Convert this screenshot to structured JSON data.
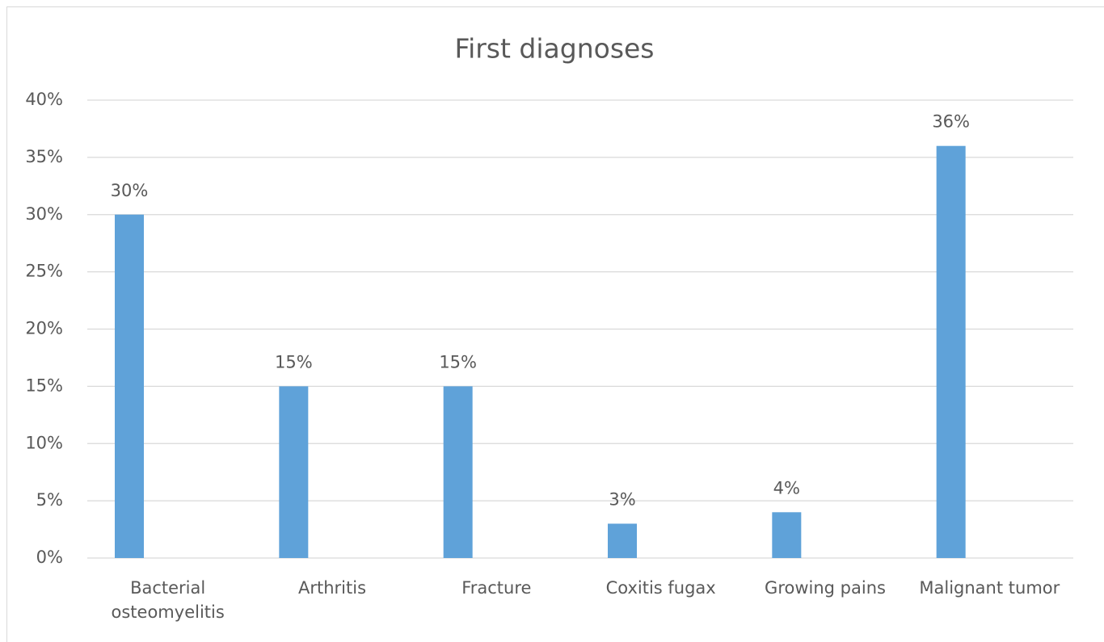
{
  "chart_data": {
    "type": "bar",
    "title": "First diagnoses",
    "categories": [
      "Bacterial osteomyelitis",
      "Arthritis",
      "Fracture",
      "Coxitis fugax",
      "Growing pains",
      "Malignant tumor"
    ],
    "values": [
      30,
      15,
      15,
      3,
      4,
      36
    ],
    "value_labels": [
      "30%",
      "15%",
      "15%",
      "3%",
      "4%",
      "36%"
    ],
    "color": "#5fa2d9",
    "ylim": [
      0,
      40
    ],
    "yticks": [
      {
        "value": 0,
        "label": "0%"
      },
      {
        "value": 5,
        "label": "5%"
      },
      {
        "value": 10,
        "label": "10%"
      },
      {
        "value": 15,
        "label": "15%"
      },
      {
        "value": 20,
        "label": "20%"
      },
      {
        "value": 25,
        "label": "25%"
      },
      {
        "value": 30,
        "label": "30%"
      },
      {
        "value": 35,
        "label": "35%"
      },
      {
        "value": 40,
        "label": "40%"
      }
    ],
    "grid": true
  }
}
